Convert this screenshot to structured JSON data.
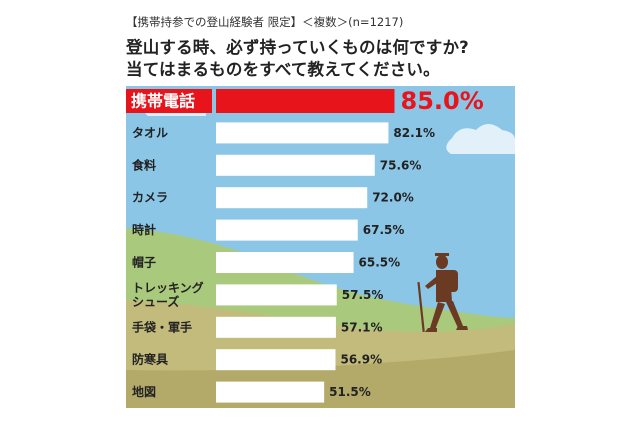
{
  "header": {
    "subtitle": "【携帯持参での登山経験者 限定】＜複数＞(n=1217)",
    "question_line1": "登山する時、必ず持っていくものは何ですか?",
    "question_line2": "当てはまるものをすべて教えてください。"
  },
  "colors": {
    "sky": "#8cc6e6",
    "highlight": "#e8141c",
    "bar": "#ffffff",
    "label": "#222222"
  },
  "chart_data": {
    "type": "bar",
    "orientation": "horizontal",
    "unit": "%",
    "categories": [
      "携帯電話",
      "タオル",
      "食料",
      "カメラ",
      "時計",
      "帽子",
      "トレッキング\nシューズ",
      "手袋・軍手",
      "防寒具",
      "地図"
    ],
    "values": [
      85.0,
      82.1,
      75.6,
      72.0,
      67.5,
      65.5,
      57.5,
      57.1,
      56.9,
      51.5
    ],
    "value_labels": [
      "85.0%",
      "82.1%",
      "75.6%",
      "72.0%",
      "67.5%",
      "65.5%",
      "57.5%",
      "57.1%",
      "56.9%",
      "51.5%"
    ],
    "highlight_index": 0,
    "xlim": [
      0,
      100
    ],
    "grid": false,
    "legend": "none"
  }
}
